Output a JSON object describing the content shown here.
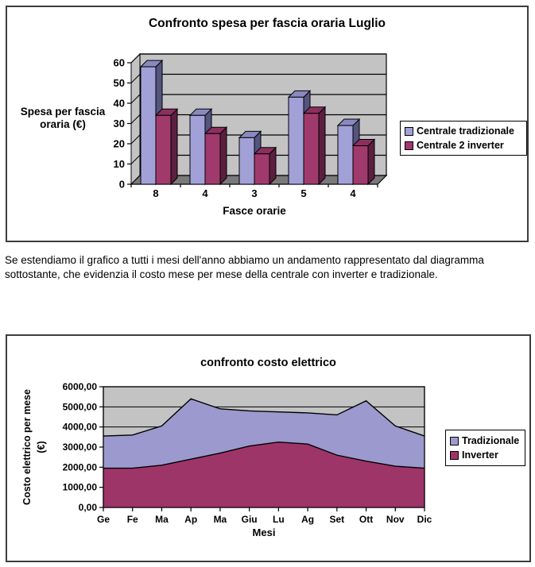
{
  "paragraph": {
    "text": "Se estendiamo il grafico a tutti i mesi dell'anno abbiamo un andamento rappresentato dal diagramma sottostante, che evidenzia il costo mese per mese della centrale con inverter e tradizionale."
  },
  "colors": {
    "plot_wall": "#c3c3c3",
    "plot_floor": "#7a7a7a",
    "frame_border": "#3d3d3d",
    "tradizionale_front": "#a2a1d7",
    "tradizionale_top": "#8a89bf",
    "tradizionale_side": "#55547f",
    "inverter_front": "#a13a6c",
    "inverter_top": "#8c2f5e",
    "inverter_side": "#5c1f3f"
  },
  "chart_data": [
    {
      "type": "bar",
      "style": "3d-clustered",
      "title": "Confronto spesa per fascia oraria Luglio",
      "categories": [
        "8",
        "4",
        "3",
        "5",
        "4"
      ],
      "series": [
        {
          "name": "Centrale tradizionale",
          "color": "#a2a1d7",
          "values": [
            58,
            34,
            23,
            43,
            29
          ]
        },
        {
          "name": "Centrale 2 inverter",
          "color": "#a13a6c",
          "values": [
            34,
            25,
            15,
            35,
            19
          ]
        }
      ],
      "xlabel": "Fasce orarie",
      "ylabel": "Spesa per fascia oraria (€)",
      "ylabel_lines": [
        "Spesa per fascia",
        "oraria (€)"
      ],
      "ylim": [
        0,
        60
      ],
      "ytick_step": 10,
      "yticks": [
        "0",
        "10",
        "20",
        "30",
        "40",
        "50",
        "60"
      ],
      "grid": true,
      "legend_position": "right",
      "plot_bg": "#c3c3c3"
    },
    {
      "type": "area",
      "style": "overlapped-areas",
      "title": "confronto costo elettrico",
      "categories": [
        "Ge",
        "Fe",
        "Ma",
        "Ap",
        "Ma",
        "Giu",
        "Lu",
        "Ag",
        "Set",
        "Ott",
        "Nov",
        "Dic"
      ],
      "series": [
        {
          "name": "Tradizionale",
          "color": "#9b99cd",
          "values": [
            3550,
            3600,
            4050,
            5400,
            4900,
            4800,
            4750,
            4700,
            4600,
            5300,
            4050,
            3550
          ]
        },
        {
          "name": "Inverter",
          "color": "#9e3568",
          "values": [
            1950,
            1950,
            2100,
            2400,
            2700,
            3050,
            3250,
            3150,
            2600,
            2300,
            2050,
            1950
          ]
        }
      ],
      "xlabel": "Mesi",
      "ylabel": "Costo elettrico per mese (€)",
      "ylabel_lines": [
        "Costo elettrico per mese",
        "(€)"
      ],
      "ylim": [
        0,
        6000
      ],
      "ytick_step": 1000,
      "yticks": [
        "0,00",
        "1000,00",
        "2000,00",
        "3000,00",
        "4000,00",
        "5000,00",
        "6000,00"
      ],
      "grid": true,
      "legend_position": "right",
      "plot_bg": "#c3c3c3"
    }
  ]
}
